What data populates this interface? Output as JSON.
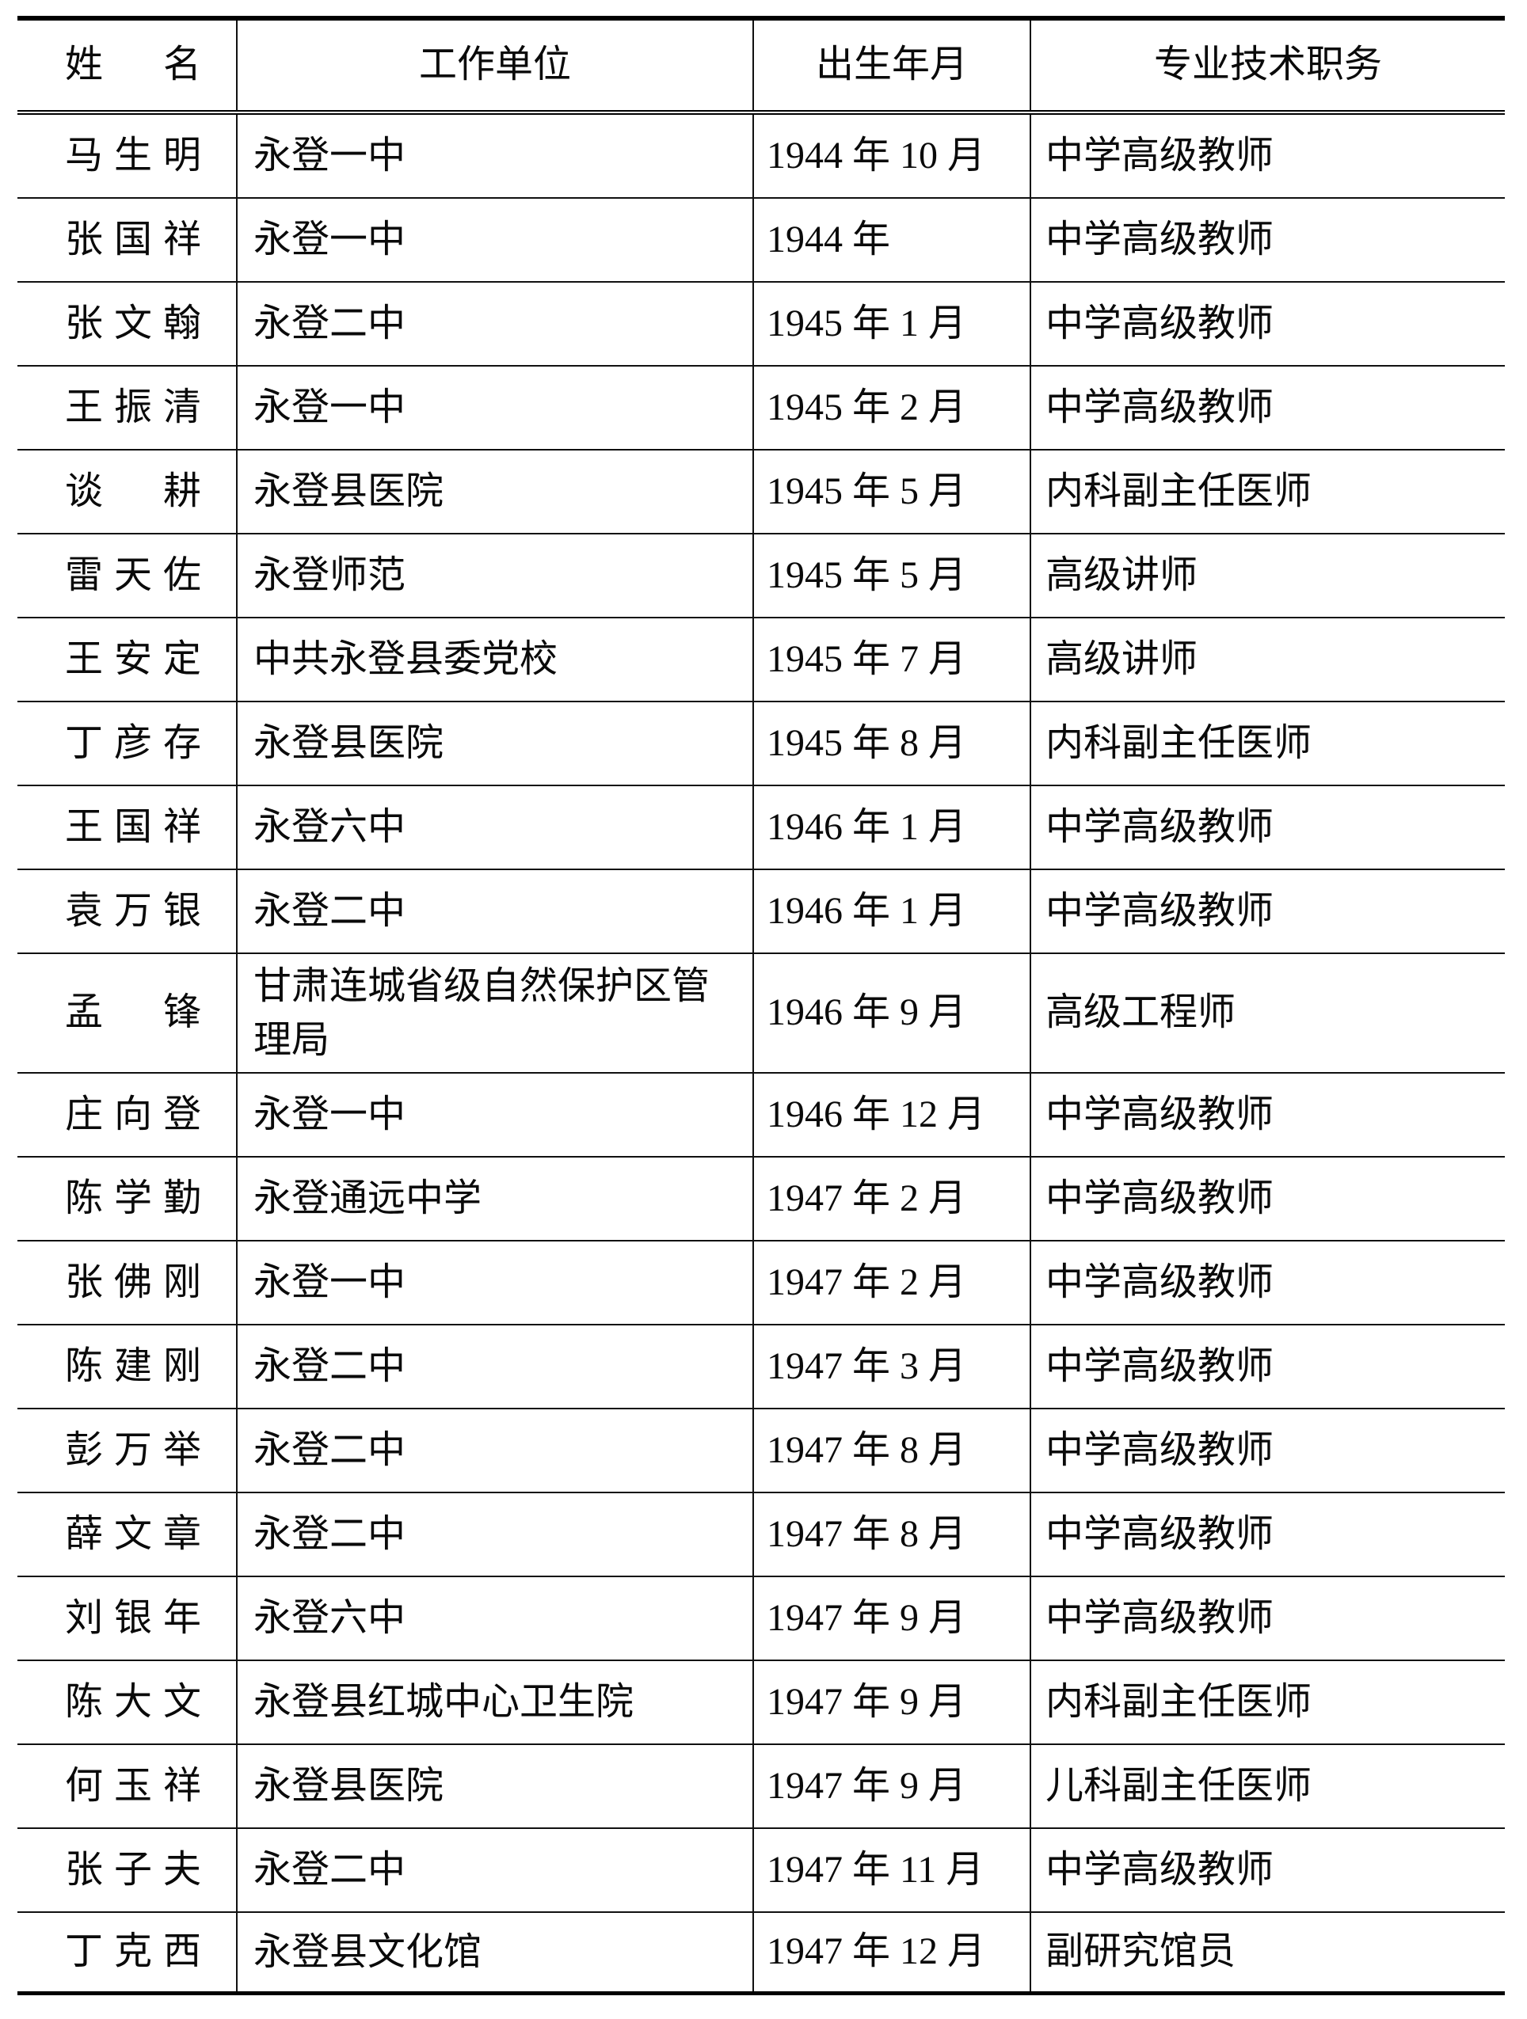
{
  "table": {
    "headers": {
      "name": "姓 名",
      "unit": "工作单位",
      "birth": "出生年月",
      "title": "专业技术职务"
    },
    "rows": [
      {
        "name": "马生明",
        "unit": "永登一中",
        "birth": "1944 年 10 月",
        "title": "中学高级教师"
      },
      {
        "name": "张国祥",
        "unit": "永登一中",
        "birth": "1944 年",
        "title": "中学高级教师"
      },
      {
        "name": "张文翰",
        "unit": "永登二中",
        "birth": "1945 年 1 月",
        "title": "中学高级教师"
      },
      {
        "name": "王振清",
        "unit": "永登一中",
        "birth": "1945 年 2 月",
        "title": "中学高级教师"
      },
      {
        "name": "谈 耕",
        "unit": "永登县医院",
        "birth": "1945 年 5 月",
        "title": "内科副主任医师"
      },
      {
        "name": "雷天佐",
        "unit": "永登师范",
        "birth": "1945 年 5 月",
        "title": "高级讲师"
      },
      {
        "name": "王安定",
        "unit": "中共永登县委党校",
        "birth": "1945 年 7 月",
        "title": "高级讲师"
      },
      {
        "name": "丁彦存",
        "unit": "永登县医院",
        "birth": "1945 年 8 月",
        "title": "内科副主任医师"
      },
      {
        "name": "王国祥",
        "unit": "永登六中",
        "birth": "1946 年 1 月",
        "title": "中学高级教师"
      },
      {
        "name": "袁万银",
        "unit": "永登二中",
        "birth": "1946 年 1 月",
        "title": "中学高级教师"
      },
      {
        "name": "孟 锋",
        "unit": "甘肃连城省级自然保护区管理局",
        "birth": "1946 年 9 月",
        "title": "高级工程师"
      },
      {
        "name": "庄向登",
        "unit": "永登一中",
        "birth": "1946 年 12 月",
        "title": "中学高级教师"
      },
      {
        "name": "陈学勤",
        "unit": "永登通远中学",
        "birth": "1947 年 2 月",
        "title": "中学高级教师"
      },
      {
        "name": "张佛刚",
        "unit": "永登一中",
        "birth": "1947 年 2 月",
        "title": "中学高级教师"
      },
      {
        "name": "陈建刚",
        "unit": "永登二中",
        "birth": "1947 年 3 月",
        "title": "中学高级教师"
      },
      {
        "name": "彭万举",
        "unit": "永登二中",
        "birth": "1947 年 8 月",
        "title": "中学高级教师"
      },
      {
        "name": "薛文章",
        "unit": "永登二中",
        "birth": "1947 年 8 月",
        "title": "中学高级教师"
      },
      {
        "name": "刘银年",
        "unit": "永登六中",
        "birth": "1947 年 9 月",
        "title": "中学高级教师"
      },
      {
        "name": "陈大文",
        "unit": "永登县红城中心卫生院",
        "birth": "1947 年 9 月",
        "title": "内科副主任医师"
      },
      {
        "name": "何玉祥",
        "unit": "永登县医院",
        "birth": "1947 年 9 月",
        "title": "儿科副主任医师"
      },
      {
        "name": "张子夫",
        "unit": "永登二中",
        "birth": "1947 年 11 月",
        "title": "中学高级教师"
      },
      {
        "name": "丁克西",
        "unit": "永登县文化馆",
        "birth": "1947 年 12 月",
        "title": "副研究馆员"
      }
    ]
  }
}
